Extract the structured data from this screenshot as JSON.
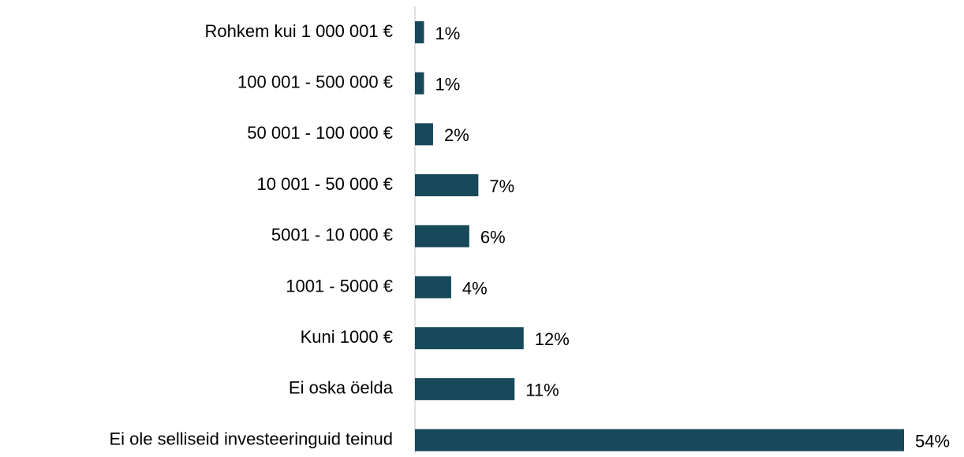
{
  "chart_data": {
    "type": "barh",
    "categories": [
      "Rohkem kui 1 000 001 €",
      "100 001 - 500 000 €",
      "50 001 - 100 000 €",
      "10 001 - 50 000 €",
      "5001 - 10 000 €",
      "1001 - 5000 €",
      "Kuni 1000 €",
      "Ei oska öelda",
      "Ei ole selliseid investeeringuid teinud"
    ],
    "values": [
      1,
      1,
      2,
      7,
      6,
      4,
      12,
      11,
      54
    ],
    "value_labels": [
      "1%",
      "1%",
      "2%",
      "7%",
      "6%",
      "4%",
      "12%",
      "11%",
      "54%"
    ],
    "color": "#17495a"
  }
}
